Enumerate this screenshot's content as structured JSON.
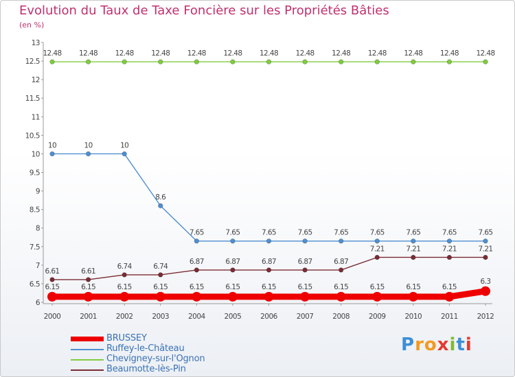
{
  "chart_data": {
    "type": "line",
    "title": "Evolution du Taux de Taxe Foncière sur les Propriétés Bâties",
    "unit_label": "(en %)",
    "xlabel": "",
    "ylabel": "",
    "ylim": [
      6,
      13
    ],
    "y_ticks": [
      "6",
      "6.5",
      "7",
      "7.5",
      "8",
      "8.5",
      "9",
      "9.5",
      "10",
      "10.5",
      "11",
      "11.5",
      "12",
      "12.5",
      "13"
    ],
    "categories": [
      "2000",
      "2001",
      "2002",
      "2003",
      "2004",
      "2005",
      "2006",
      "2007",
      "2008",
      "2009",
      "2010",
      "2011",
      "2012"
    ],
    "series": [
      {
        "name": "Chevigney-sur-l'Ognon",
        "color": "#7fcc3f",
        "values": [
          12.48,
          12.48,
          12.48,
          12.48,
          12.48,
          12.48,
          12.48,
          12.48,
          12.48,
          12.48,
          12.48,
          12.48,
          12.48
        ],
        "labels": [
          "12.48",
          "12.48",
          "12.48",
          "12.48",
          "12.48",
          "12.48",
          "12.48",
          "12.48",
          "12.48",
          "12.48",
          "12.48",
          "12.48",
          "12.48"
        ]
      },
      {
        "name": "Ruffey-le-Château",
        "color": "#4f8fd0",
        "values": [
          10,
          10,
          10,
          8.6,
          7.65,
          7.65,
          7.65,
          7.65,
          7.65,
          7.65,
          7.65,
          7.65,
          7.65
        ],
        "labels": [
          "10",
          "10",
          "10",
          "8.6",
          "7.65",
          "7.65",
          "7.65",
          "7.65",
          "7.65",
          "7.65",
          "7.65",
          "7.65",
          "7.65"
        ]
      },
      {
        "name": "Beaumotte-lès-Pin",
        "color": "#7a2b33",
        "values": [
          6.61,
          6.61,
          6.74,
          6.74,
          6.87,
          6.87,
          6.87,
          6.87,
          6.87,
          7.21,
          7.21,
          7.21,
          7.21
        ],
        "labels": [
          "6.61",
          "6.61",
          "6.74",
          "6.74",
          "6.87",
          "6.87",
          "6.87",
          "6.87",
          "6.87",
          "7.21",
          "7.21",
          "7.21",
          "7.21"
        ]
      },
      {
        "name": "BRUSSEY",
        "color": "#ee0000",
        "values": [
          6.15,
          6.15,
          6.15,
          6.15,
          6.15,
          6.15,
          6.15,
          6.15,
          6.15,
          6.15,
          6.15,
          6.15,
          6.3
        ],
        "labels": [
          "6.15",
          "6.15",
          "6.15",
          "6.15",
          "6.15",
          "6.15",
          "6.15",
          "6.15",
          "6.15",
          "6.15",
          "6.15",
          "6.15",
          "6.3"
        ]
      }
    ],
    "legend": [
      {
        "name": "BRUSSEY",
        "color": "#ee0000"
      },
      {
        "name": "Ruffey-le-Château",
        "color": "#4f8fd0"
      },
      {
        "name": "Chevigney-sur-l'Ognon",
        "color": "#7fcc3f"
      },
      {
        "name": "Beaumotte-lès-Pin",
        "color": "#7a2b33"
      }
    ],
    "legend_position": "bottom-left",
    "grid": false
  },
  "logo": {
    "letters": [
      "P",
      "r",
      "o",
      "x",
      "i",
      "t",
      "i"
    ],
    "colors": [
      "#3d8fd6",
      "#f29a1f",
      "#f29a1f",
      "#e5392f",
      "#7fba2f",
      "#3d8fd6",
      "#e5392f"
    ]
  }
}
